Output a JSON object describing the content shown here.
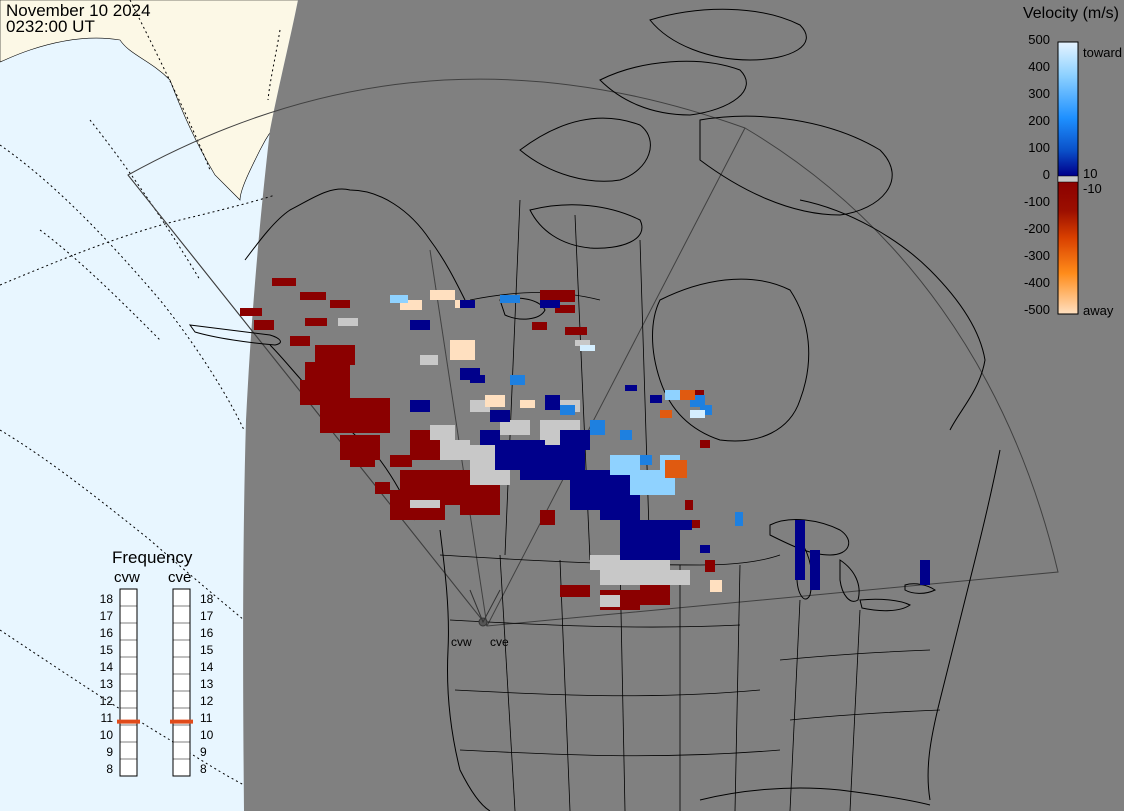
{
  "title": {
    "date": "November 10 2024",
    "time": "0232:00 UT"
  },
  "colorbar": {
    "title": "Velocity (m/s)",
    "ticks": [
      "500",
      "400",
      "300",
      "200",
      "100",
      "0",
      "-100",
      "-200",
      "-300",
      "-400",
      "-500"
    ],
    "mid_upper": "10",
    "mid_lower": "-10",
    "toward_label": "toward",
    "away_label": "away",
    "gradient_colors": [
      "#e6f4ff",
      "#8fd2ff",
      "#1e90ff",
      "#0a4fc8",
      "#00008b",
      "#8b0000",
      "#9c0f00",
      "#d94000",
      "#ff8c1a",
      "#ffe0c0"
    ],
    "colors_meaning": {
      "toward": "blue shades",
      "away": "red/orange shades",
      "ground_scatter": "#c8c8c8"
    }
  },
  "frequency": {
    "title": "Frequency",
    "radars": [
      {
        "name": "cvw",
        "freq_mhz": 10.7
      },
      {
        "name": "cve",
        "freq_mhz": 10.7
      }
    ],
    "scale": [
      "18",
      "17",
      "16",
      "15",
      "14",
      "13",
      "12",
      "11",
      "10",
      "9",
      "8"
    ],
    "marker_color": "#e04a1a"
  },
  "sites": [
    {
      "name": "cvw"
    },
    {
      "name": "cve"
    }
  ],
  "map": {
    "ocean_color": "#e8f6ff",
    "land_color": "#fcf8e6",
    "night_color": "#808080",
    "coastline_color": "#000000",
    "fov_color": "#404040"
  }
}
